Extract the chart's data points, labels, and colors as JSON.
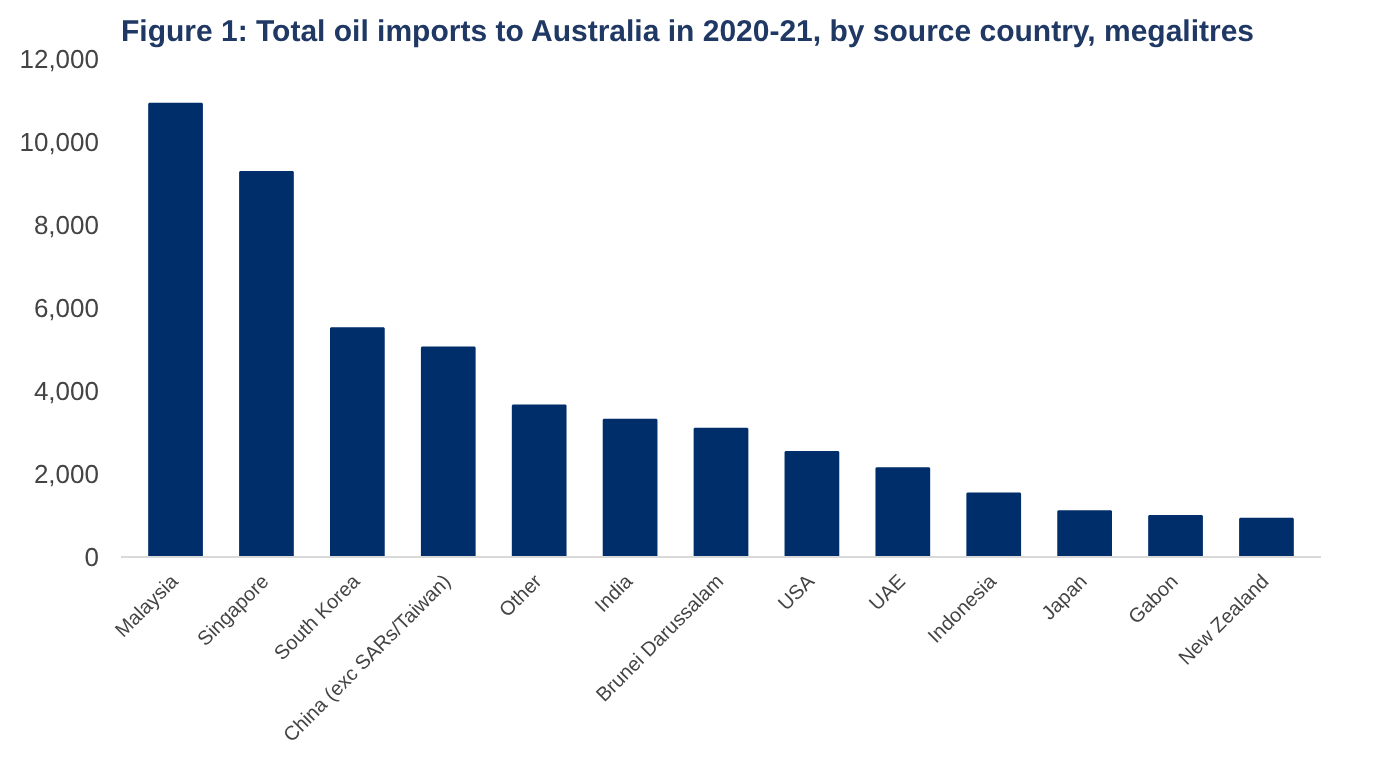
{
  "chart_data": {
    "type": "bar",
    "title": "Figure 1: Total oil imports to Australia in 2020-21, by source country, megalitres",
    "categories": [
      "Malaysia",
      "Singapore",
      "South Korea",
      "China (exc SARs/Taiwan)",
      "Other",
      "India",
      "Brunei Darussalam",
      "USA",
      "UAE",
      "Indonesia",
      "Japan",
      "Gabon",
      "New Zealand"
    ],
    "values": [
      10920,
      9280,
      5510,
      5050,
      3650,
      3310,
      3090,
      2530,
      2140,
      1530,
      1100,
      990,
      920
    ],
    "color": "#002e6b",
    "ylim": [
      0,
      12000
    ],
    "yticks": [
      {
        "value": 0,
        "label": "0"
      },
      {
        "value": 2000,
        "label": "2,000"
      },
      {
        "value": 4000,
        "label": "4,000"
      },
      {
        "value": 6000,
        "label": "6,000"
      },
      {
        "value": 8000,
        "label": "8,000"
      },
      {
        "value": 10000,
        "label": "10,000"
      },
      {
        "value": 12000,
        "label": "12,000"
      }
    ],
    "grid": false
  }
}
